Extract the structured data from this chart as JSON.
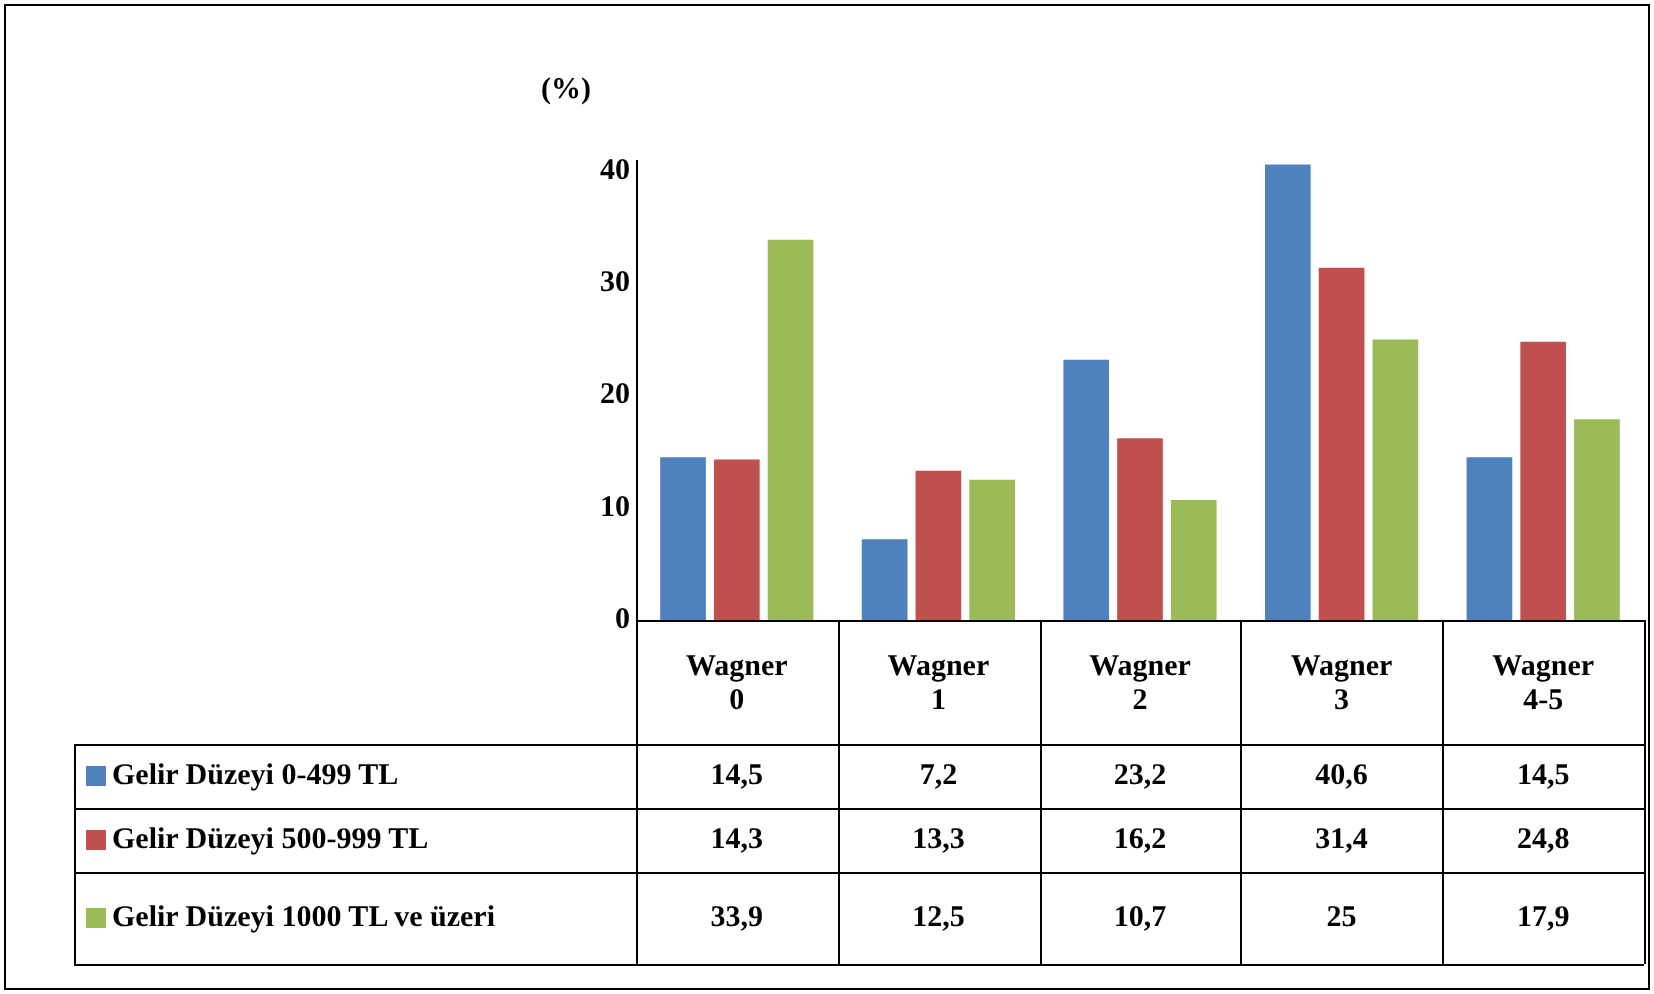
{
  "chart_data": {
    "type": "bar",
    "ylabel": "(%)",
    "categories": [
      "Wagner 0",
      "Wagner 1",
      "Wagner 2",
      "Wagner 3",
      "Wagner 4-5"
    ],
    "series": [
      {
        "name": "Gelir Düzeyi 0-499 TL",
        "color": "#4f81bd",
        "values": [
          14.5,
          7.2,
          23.2,
          40.6,
          14.5
        ],
        "value_labels": [
          "14,5",
          "7,2",
          "23,2",
          "40,6",
          "14,5"
        ]
      },
      {
        "name": "Gelir Düzeyi 500-999 TL",
        "color": "#c0504d",
        "values": [
          14.3,
          13.3,
          16.2,
          31.4,
          24.8
        ],
        "value_labels": [
          "14,3",
          "13,3",
          "16,2",
          "31,4",
          "24,8"
        ]
      },
      {
        "name": "Gelir Düzeyi 1000 TL ve üzeri",
        "color": "#9bbb59",
        "values": [
          33.9,
          12.5,
          10.7,
          25,
          17.9
        ],
        "value_labels": [
          "33,9",
          "12,5",
          "10,7",
          "25",
          "17,9"
        ]
      }
    ],
    "ylim": [
      0,
      41
    ],
    "yticks": [
      0,
      10,
      20,
      30,
      40
    ],
    "grid": false,
    "legend": "bottom"
  }
}
